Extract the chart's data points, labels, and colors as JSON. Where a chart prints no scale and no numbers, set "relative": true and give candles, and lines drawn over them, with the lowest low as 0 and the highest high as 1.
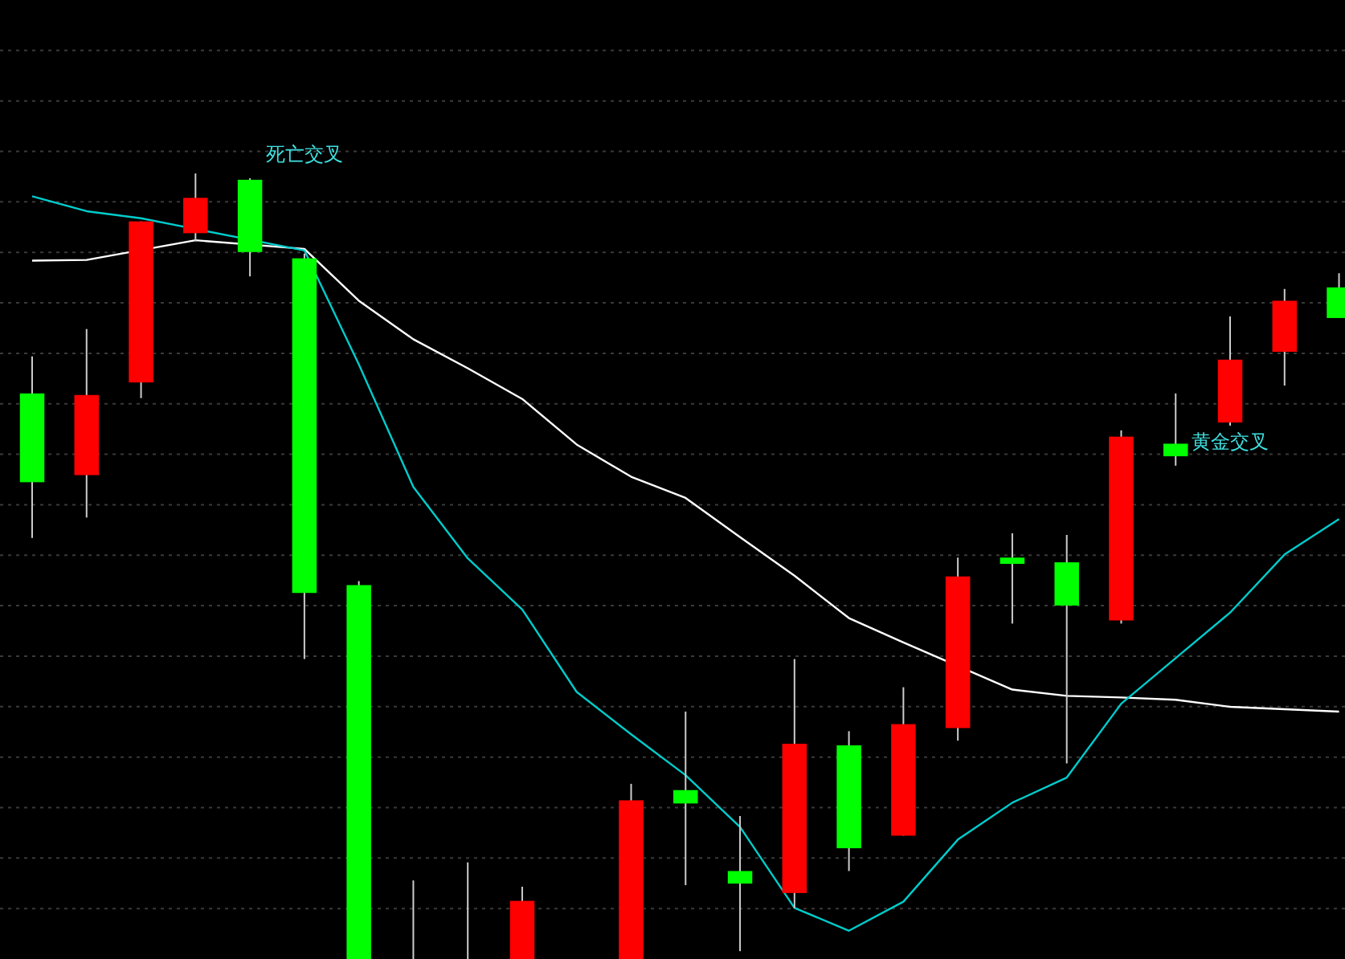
{
  "chart_data": {
    "type": "candlestick",
    "relative": true,
    "grid": "y",
    "categories": [
      null,
      null,
      null,
      null,
      null,
      null,
      null,
      null,
      null,
      null,
      null,
      null,
      null,
      null,
      null,
      null,
      null,
      null,
      null,
      null,
      null,
      null,
      null,
      null,
      null
    ],
    "ohlc": [
      [
        0.72,
        0.767,
        0.536,
        0.607
      ],
      [
        0.616,
        0.802,
        0.562,
        0.718
      ],
      [
        0.734,
        0.939,
        0.714,
        0.939
      ],
      [
        0.924,
        1.0,
        0.914,
        0.969
      ],
      [
        0.992,
        0.994,
        0.869,
        0.9
      ],
      [
        0.892,
        0.898,
        0.382,
        0.466
      ],
      [
        0.476,
        0.481,
        0,
        0
      ],
      [
        0,
        0.1,
        0,
        0
      ],
      [
        0,
        0.123,
        0,
        0
      ],
      [
        0,
        0.092,
        0,
        0.074
      ],
      null,
      [
        0,
        0.223,
        0,
        0.202
      ],
      [
        0.215,
        0.315,
        0.094,
        0.198
      ],
      [
        0.112,
        0.182,
        0.01,
        0.096
      ],
      [
        0.084,
        0.382,
        0.065,
        0.274
      ],
      [
        0.272,
        0.29,
        0.112,
        0.141
      ],
      [
        0.157,
        0.346,
        0.157,
        0.299
      ],
      [
        0.294,
        0.511,
        0.278,
        0.487
      ],
      [
        0.511,
        0.542,
        0.427,
        0.503
      ],
      [
        0.505,
        0.54,
        0.249,
        0.45
      ],
      [
        0.431,
        0.673,
        0.427,
        0.665
      ],
      [
        0.656,
        0.72,
        0.628,
        0.64
      ],
      [
        0.683,
        0.818,
        0.679,
        0.763
      ],
      [
        0.773,
        0.853,
        0.73,
        0.838
      ],
      [
        0.855,
        0.873,
        0.816,
        0.816
      ]
    ],
    "colors": [
      "#00ff00",
      "#ff0000",
      "#ff0000",
      "#ff0000",
      "#00ff00",
      "#00ff00",
      "#00ff00",
      "#cccccc",
      "#cccccc",
      "#ff0000",
      null,
      "#ff0000",
      "#00ff00",
      "#00ff00",
      "#ff0000",
      "#00ff00",
      "#ff0000",
      "#ff0000",
      "#00ff00",
      "#00ff00",
      "#ff0000",
      "#00ff00",
      "#ff0000",
      "#ff0000",
      "#00ff00"
    ],
    "series": [
      {
        "type": "line",
        "color": "#ffffff",
        "values": [
          0.889,
          0.89,
          null,
          0.915,
          null,
          0.904,
          0.838,
          0.789,
          0.752,
          0.713,
          0.655,
          0.614,
          0.587,
          0.537,
          0.488,
          0.434,
          0.403,
          null,
          0.343,
          0.335,
          0.333,
          0.33,
          0.321,
          0.318,
          0.315
        ]
      },
      {
        "type": "line",
        "color": "#00cccc",
        "values": [
          0.971,
          0.952,
          0.943,
          null,
          null,
          0.902,
          0.757,
          0.601,
          0.51,
          0.445,
          0.34,
          0.286,
          0.234,
          0.168,
          0.065,
          0.036,
          0.073,
          0.152,
          0.199,
          0.231,
          0.325,
          0.383,
          0.441,
          0.515,
          0.56
        ]
      }
    ],
    "annotations": [
      "死亡交叉",
      "黄金交叉"
    ]
  }
}
